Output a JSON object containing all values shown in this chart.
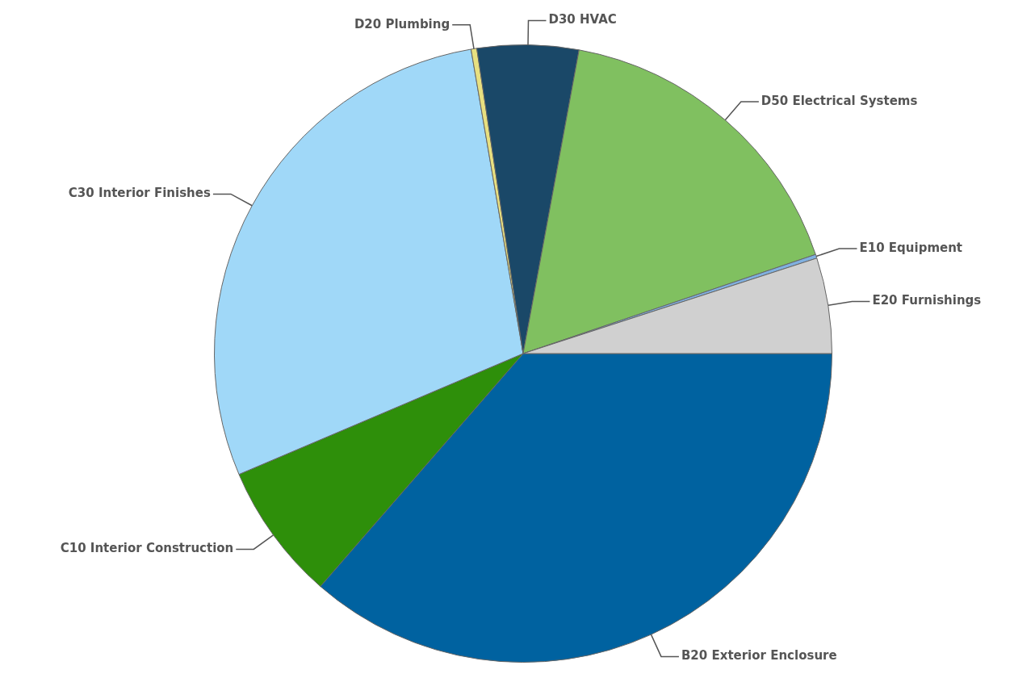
{
  "chart_data": {
    "type": "pie",
    "categories": [
      "B20 Exterior Enclosure",
      "C10 Interior Construction",
      "C30 Interior Finishes",
      "D20 Plumbing",
      "D30 HVAC",
      "D50 Electrical Systems",
      "E10 Equipment",
      "E20 Furnishings"
    ],
    "values": [
      36.4,
      7.2,
      28.7,
      0.3,
      5.3,
      16.9,
      0.2,
      5.0
    ],
    "colors": [
      "#0062a0",
      "#2e8f0a",
      "#a0d8f8",
      "#e8e080",
      "#1a4868",
      "#80c060",
      "#80b0e0",
      "#d0d0d0"
    ],
    "legend": false
  }
}
